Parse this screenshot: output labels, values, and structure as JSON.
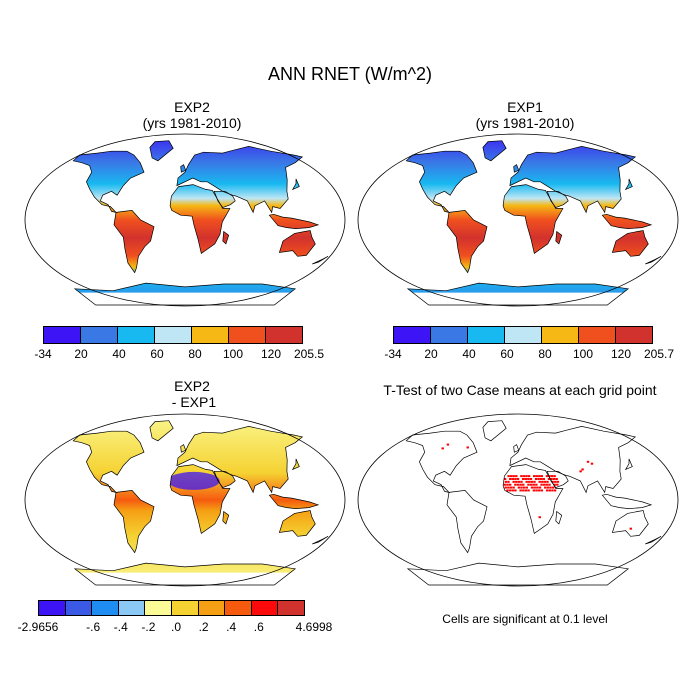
{
  "figure_title": "ANN RNET (W/m^2)",
  "panels": [
    {
      "id": "exp2",
      "title_line1": "EXP2",
      "title_line2": "(yrs 1981-2010)",
      "field": "climatology"
    },
    {
      "id": "exp1",
      "title_line1": "EXP1",
      "title_line2": "(yrs 1981-2010)",
      "field": "climatology"
    },
    {
      "id": "diff",
      "title_line1": "EXP2",
      "title_line2": " - EXP1",
      "field": "difference"
    },
    {
      "id": "ttest",
      "title_line1": "T-Test of two Case means at each grid point",
      "title_line2": "",
      "field": "significance"
    }
  ],
  "colorbars": {
    "exp2": {
      "colors": [
        "#3c14f5",
        "#3a78e6",
        "#18b9f0",
        "#bfe6f5",
        "#f5b814",
        "#f0501e",
        "#d2322d"
      ],
      "labels": [
        "-34",
        "20",
        "40",
        "60",
        "80",
        "100",
        "120",
        "205.5"
      ]
    },
    "exp1": {
      "colors": [
        "#3c14f5",
        "#3a78e6",
        "#18b9f0",
        "#bfe6f5",
        "#f5b814",
        "#f0501e",
        "#d2322d"
      ],
      "labels": [
        "-34",
        "20",
        "40",
        "60",
        "80",
        "100",
        "120",
        "205.7"
      ]
    },
    "diff": {
      "colors": [
        "#3c14f5",
        "#3a5ae6",
        "#1e8cf0",
        "#8cc8f5",
        "#fafa96",
        "#f5d232",
        "#f5a014",
        "#f55a0f",
        "#fa0a0a",
        "#d2322d"
      ],
      "labels": [
        "-2.9656",
        "",
        "-.6",
        "-.4",
        "-.2",
        ".0",
        ".2",
        ".4",
        ".6",
        "",
        "4.6998"
      ]
    }
  },
  "significance_note": "Cells are significant at 0.1 level",
  "significance_color": "#ff0000"
}
